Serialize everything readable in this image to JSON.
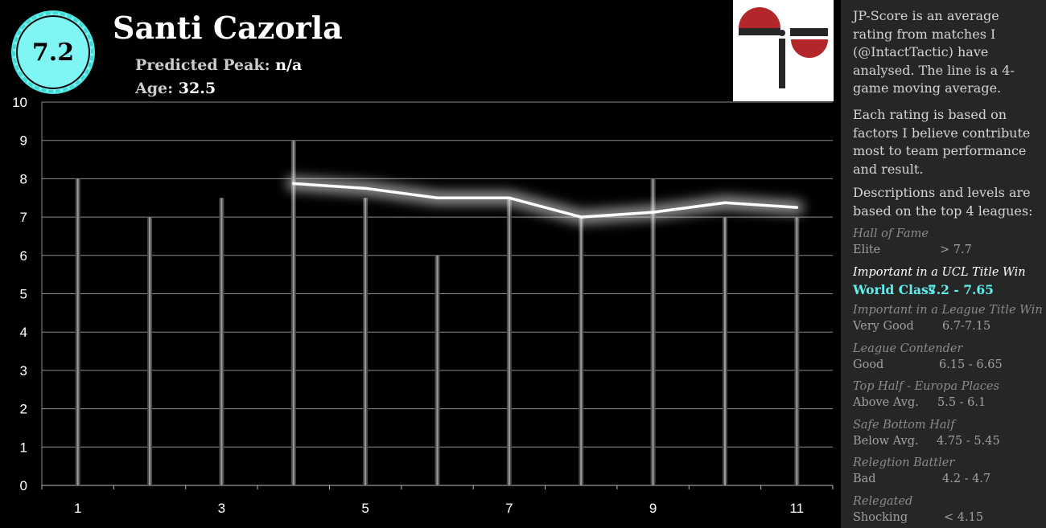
{
  "player": {
    "score": "7.2",
    "name": "Santi Cazorla",
    "peak_label": "Predicted Peak:",
    "peak_value": "n/a",
    "age_label": "Age:",
    "age_value": "32.5"
  },
  "sidebar": {
    "para1": "JP-Score is an average rating from matches I (@IntactTactic) have analysed. The line is a 4-game moving average.",
    "para2": "Each rating is based on factors I believe contribute most to team performance and result.",
    "para3": "Descriptions and levels are based on the top 4 leagues:",
    "levels": [
      {
        "category": "Hall of Fame",
        "name": "Elite",
        "range": "> 7.7"
      },
      {
        "category": "Important in a UCL Title Win",
        "name": "World Class",
        "range": "7.2 - 7.65"
      },
      {
        "category": "Important in a League Title Win",
        "name": "Very Good",
        "range": "6.7-7.15"
      },
      {
        "category": "League Contender",
        "name": "Good",
        "range": "6.15 - 6.65"
      },
      {
        "category": "Top Half - Europa Places",
        "name": "Above Avg.",
        "range": "5.5 - 6.1"
      },
      {
        "category": "Safe Bottom Half",
        "name": "Below Avg.",
        "range": "4.75 - 5.45"
      },
      {
        "category": "Relegtion Battler",
        "name": "Bad",
        "range": "4.2 - 4.7"
      },
      {
        "category": "Relegated",
        "name": "Shocking",
        "range": "< 4.15"
      }
    ],
    "highlight_index": 1
  },
  "colors": {
    "accent": "#5ff0ee",
    "badge": "#7ff6f3",
    "panel": "#262626",
    "logo_red": "#b3262a"
  },
  "logo": {
    "icon": "jp-logo-icon"
  },
  "chart_data": {
    "type": "bar",
    "x": [
      1,
      2,
      3,
      4,
      5,
      6,
      7,
      8,
      9,
      10,
      11
    ],
    "x_tick_labels": [
      "1",
      "3",
      "5",
      "7",
      "9",
      "11"
    ],
    "y_tick_labels": [
      "0",
      "1",
      "2",
      "3",
      "4",
      "5",
      "6",
      "7",
      "8",
      "9",
      "10"
    ],
    "ylim": [
      0,
      10
    ],
    "grid": true,
    "series": [
      {
        "kind": "bar",
        "values": [
          8,
          7,
          7.5,
          9,
          7.5,
          6,
          7.5,
          7,
          8,
          7,
          7
        ]
      },
      {
        "kind": "line",
        "x": [
          4,
          5,
          6,
          7,
          8,
          9,
          10,
          11
        ],
        "values": [
          7.875,
          7.75,
          7.5,
          7.5,
          7.0,
          7.125,
          7.375,
          7.25
        ]
      }
    ]
  }
}
